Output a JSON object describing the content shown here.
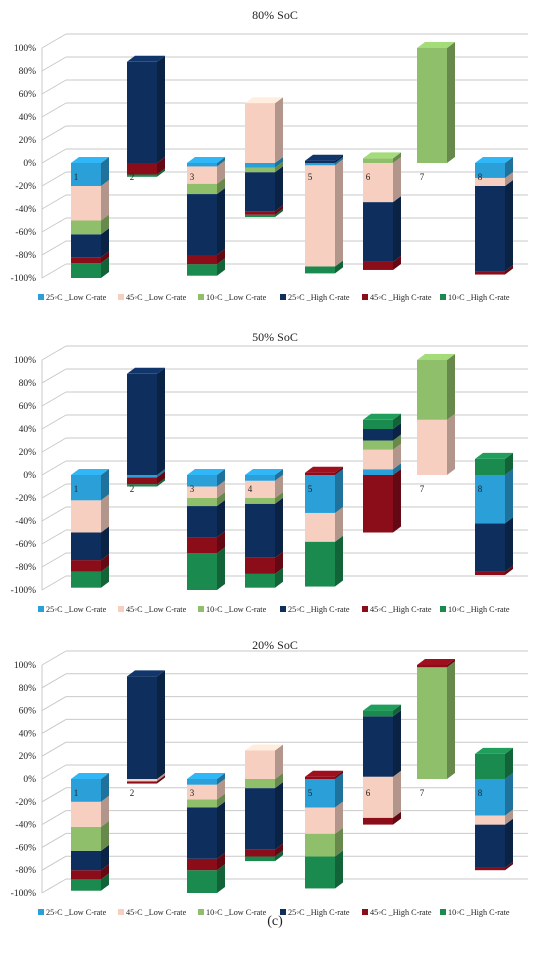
{
  "caption": "(c)",
  "colors": {
    "25C_Low": "#2a9fd8",
    "45C_Low": "#f7cfc1",
    "10C_Low": "#8fbf6a",
    "25C_High": "#0e2f5e",
    "45C_High": "#8b0d1a",
    "10C_High": "#1b8a4f"
  },
  "chart_data": [
    {
      "type": "bar",
      "stacked": true,
      "title": "80% SoC",
      "yticks": [
        "100%",
        "80%",
        "60%",
        "40%",
        "20%",
        "0%",
        "-20%",
        "-40%",
        "-60%",
        "-80%",
        "-100%"
      ],
      "ylim": [
        -100,
        100
      ],
      "categories": [
        "1",
        "2",
        "3",
        "4",
        "5",
        "6",
        "7",
        "8"
      ],
      "category_labels": [
        "1",
        "2",
        "3",
        "",
        "5",
        "6",
        "7",
        "8"
      ],
      "legend": [
        {
          "key": "25C_Low",
          "label": "25◦C _Low C-rate"
        },
        {
          "key": "45C_Low",
          "label": "45◦C _Low C-rate"
        },
        {
          "key": "10C_Low",
          "label": "10◦C _Low C-rate"
        },
        {
          "key": "25C_High",
          "label": "25◦C _High C-rate"
        },
        {
          "key": "45C_High",
          "label": "45◦C _High C-rate"
        },
        {
          "key": "10C_High",
          "label": "10◦C _High C-rate"
        }
      ],
      "stacks": [
        [
          {
            "k": "25C_Low",
            "from": 0,
            "to": -20
          },
          {
            "k": "45C_Low",
            "from": -20,
            "to": -50
          },
          {
            "k": "10C_Low",
            "from": -50,
            "to": -62
          },
          {
            "k": "25C_High",
            "from": -62,
            "to": -82
          },
          {
            "k": "45C_High",
            "from": -82,
            "to": -87
          },
          {
            "k": "10C_High",
            "from": -87,
            "to": -100
          }
        ],
        [
          {
            "k": "25C_High",
            "from": 0,
            "to": 88
          },
          {
            "k": "45C_High",
            "from": 0,
            "to": -10
          },
          {
            "k": "10C_High",
            "from": -10,
            "to": -12
          }
        ],
        [
          {
            "k": "25C_Low",
            "from": 0,
            "to": -3
          },
          {
            "k": "45C_Low",
            "from": -3,
            "to": -18
          },
          {
            "k": "10C_Low",
            "from": -18,
            "to": -27
          },
          {
            "k": "25C_High",
            "from": -27,
            "to": -80
          },
          {
            "k": "45C_High",
            "from": -80,
            "to": -88
          },
          {
            "k": "10C_High",
            "from": -88,
            "to": -98
          }
        ],
        [
          {
            "k": "45C_Low",
            "from": 0,
            "to": 52
          },
          {
            "k": "25C_Low",
            "from": 0,
            "to": -4
          },
          {
            "k": "10C_Low",
            "from": -4,
            "to": -8
          },
          {
            "k": "25C_High",
            "from": -8,
            "to": -42
          },
          {
            "k": "45C_High",
            "from": -42,
            "to": -45
          },
          {
            "k": "10C_High",
            "from": -45,
            "to": -47
          }
        ],
        [
          {
            "k": "25C_High",
            "from": 0,
            "to": 2
          },
          {
            "k": "25C_Low",
            "from": 0,
            "to": -2
          },
          {
            "k": "45C_Low",
            "from": -2,
            "to": -90
          },
          {
            "k": "10C_High",
            "from": -90,
            "to": -96
          }
        ],
        [
          {
            "k": "10C_Low",
            "from": 0,
            "to": 4
          },
          {
            "k": "45C_Low",
            "from": 0,
            "to": -34
          },
          {
            "k": "25C_High",
            "from": -34,
            "to": -86
          },
          {
            "k": "45C_High",
            "from": -86,
            "to": -93
          }
        ],
        [
          {
            "k": "10C_Low",
            "from": 0,
            "to": 100
          }
        ],
        [
          {
            "k": "25C_Low",
            "from": 0,
            "to": -13
          },
          {
            "k": "45C_Low",
            "from": -13,
            "to": -20
          },
          {
            "k": "25C_High",
            "from": -20,
            "to": -94
          },
          {
            "k": "45C_High",
            "from": -94,
            "to": -97
          }
        ]
      ]
    },
    {
      "type": "bar",
      "stacked": true,
      "title": "50% SoC",
      "yticks": [
        "100%",
        "80%",
        "60%",
        "40%",
        "20%",
        "0%",
        "-20%",
        "-40%",
        "-60%",
        "-80%",
        "-100%"
      ],
      "ylim": [
        -100,
        100
      ],
      "categories": [
        "1",
        "2",
        "3",
        "4",
        "5",
        "6",
        "7",
        "8"
      ],
      "category_labels": [
        "1",
        "2",
        "3",
        "4",
        "5",
        "",
        "7",
        "8"
      ],
      "legend": [
        {
          "key": "25C_Low",
          "label": "25◦C _Low C-rate"
        },
        {
          "key": "45C_Low",
          "label": "45◦C _Low C-rate"
        },
        {
          "key": "10C_Low",
          "label": "10◦C _Low C-rate"
        },
        {
          "key": "25C_High",
          "label": "25◦C _High C-rate"
        },
        {
          "key": "45C_High",
          "label": "45◦C _High C-rate"
        },
        {
          "key": "10C_High",
          "label": "10◦C _High C-rate"
        }
      ],
      "stacks": [
        [
          {
            "k": "25C_Low",
            "from": 0,
            "to": -22
          },
          {
            "k": "45C_Low",
            "from": -22,
            "to": -50
          },
          {
            "k": "25C_High",
            "from": -50,
            "to": -74
          },
          {
            "k": "45C_High",
            "from": -74,
            "to": -84
          },
          {
            "k": "10C_High",
            "from": -84,
            "to": -98
          }
        ],
        [
          {
            "k": "25C_High",
            "from": 0,
            "to": 88
          },
          {
            "k": "25C_Low",
            "from": 0,
            "to": -2
          },
          {
            "k": "45C_High",
            "from": -2,
            "to": -8
          },
          {
            "k": "10C_High",
            "from": -8,
            "to": -10
          }
        ],
        [
          {
            "k": "25C_Low",
            "from": 0,
            "to": -10
          },
          {
            "k": "45C_Low",
            "from": -10,
            "to": -20
          },
          {
            "k": "10C_Low",
            "from": -20,
            "to": -27
          },
          {
            "k": "25C_High",
            "from": -27,
            "to": -54
          },
          {
            "k": "45C_High",
            "from": -54,
            "to": -68
          },
          {
            "k": "10C_High",
            "from": -68,
            "to": -100
          }
        ],
        [
          {
            "k": "25C_Low",
            "from": 0,
            "to": -5
          },
          {
            "k": "45C_Low",
            "from": -5,
            "to": -20
          },
          {
            "k": "10C_Low",
            "from": -20,
            "to": -25
          },
          {
            "k": "25C_High",
            "from": -25,
            "to": -72
          },
          {
            "k": "45C_High",
            "from": -72,
            "to": -86
          },
          {
            "k": "10C_High",
            "from": -86,
            "to": -98
          }
        ],
        [
          {
            "k": "45C_High",
            "from": 0,
            "to": 2
          },
          {
            "k": "25C_Low",
            "from": 0,
            "to": -33
          },
          {
            "k": "45C_Low",
            "from": -33,
            "to": -58
          },
          {
            "k": "10C_High",
            "from": -58,
            "to": -97
          }
        ],
        [
          {
            "k": "25C_Low",
            "from": 0,
            "to": 5
          },
          {
            "k": "45C_Low",
            "from": 5,
            "to": 22
          },
          {
            "k": "10C_Low",
            "from": 22,
            "to": 30
          },
          {
            "k": "25C_High",
            "from": 30,
            "to": 40
          },
          {
            "k": "10C_High",
            "from": 40,
            "to": 48
          },
          {
            "k": "45C_High",
            "from": 0,
            "to": -50
          }
        ],
        [
          {
            "k": "45C_Low",
            "from": 0,
            "to": 48
          },
          {
            "k": "10C_Low",
            "from": 48,
            "to": 100
          }
        ],
        [
          {
            "k": "10C_High",
            "from": 0,
            "to": 14
          },
          {
            "k": "25C_Low",
            "from": 0,
            "to": -42
          },
          {
            "k": "25C_High",
            "from": -42,
            "to": -84
          },
          {
            "k": "45C_High",
            "from": -84,
            "to": -87
          }
        ]
      ]
    },
    {
      "type": "bar",
      "stacked": true,
      "title": "20% SoC",
      "yticks": [
        "100%",
        "80%",
        "60%",
        "40%",
        "20%",
        "0%",
        "-20%",
        "-40%",
        "-60%",
        "-80%",
        "-100%"
      ],
      "ylim": [
        -100,
        100
      ],
      "categories": [
        "1",
        "2",
        "3",
        "4",
        "5",
        "6",
        "7",
        "8"
      ],
      "category_labels": [
        "1",
        "2",
        "3",
        "",
        "5",
        "6",
        "7",
        "8"
      ],
      "legend": [
        {
          "key": "25C_Low",
          "label": "25◦C _Low C-rate"
        },
        {
          "key": "45C_Low",
          "label": "45◦C _Low C-rate"
        },
        {
          "key": "10C_Low",
          "label": "10◦C _Low C-rate"
        },
        {
          "key": "25C_High",
          "label": "25◦C _High C-rate"
        },
        {
          "key": "45C_High",
          "label": "45◦C _High C-rate"
        },
        {
          "key": "10C_High",
          "label": "10◦C _High C-rate"
        }
      ],
      "stacks": [
        [
          {
            "k": "25C_Low",
            "from": 0,
            "to": -20
          },
          {
            "k": "45C_Low",
            "from": -20,
            "to": -42
          },
          {
            "k": "10C_Low",
            "from": -42,
            "to": -63
          },
          {
            "k": "25C_High",
            "from": -63,
            "to": -80
          },
          {
            "k": "45C_High",
            "from": -80,
            "to": -88
          },
          {
            "k": "10C_High",
            "from": -88,
            "to": -98
          }
        ],
        [
          {
            "k": "25C_High",
            "from": 0,
            "to": 90
          },
          {
            "k": "45C_Low",
            "from": 0,
            "to": -2
          },
          {
            "k": "45C_High",
            "from": -2,
            "to": -4
          }
        ],
        [
          {
            "k": "25C_Low",
            "from": 0,
            "to": -5
          },
          {
            "k": "45C_Low",
            "from": -5,
            "to": -18
          },
          {
            "k": "10C_Low",
            "from": -18,
            "to": -25
          },
          {
            "k": "25C_High",
            "from": -25,
            "to": -70
          },
          {
            "k": "45C_High",
            "from": -70,
            "to": -80
          },
          {
            "k": "10C_High",
            "from": -80,
            "to": -100
          }
        ],
        [
          {
            "k": "45C_Low",
            "from": 0,
            "to": 25
          },
          {
            "k": "10C_Low",
            "from": 0,
            "to": -8
          },
          {
            "k": "25C_High",
            "from": -8,
            "to": -62
          },
          {
            "k": "45C_High",
            "from": -62,
            "to": -68
          },
          {
            "k": "10C_High",
            "from": -68,
            "to": -72
          }
        ],
        [
          {
            "k": "45C_High",
            "from": 0,
            "to": 2
          },
          {
            "k": "25C_Low",
            "from": 0,
            "to": -25
          },
          {
            "k": "45C_Low",
            "from": -25,
            "to": -48
          },
          {
            "k": "10C_Low",
            "from": -48,
            "to": -68
          },
          {
            "k": "10C_High",
            "from": -68,
            "to": -96
          }
        ],
        [
          {
            "k": "10C_High",
            "from": 55,
            "to": 60
          },
          {
            "k": "25C_High",
            "from": 2,
            "to": 55
          },
          {
            "k": "45C_Low",
            "from": 2,
            "to": -34
          },
          {
            "k": "45C_High",
            "from": -34,
            "to": -40
          }
        ],
        [
          {
            "k": "45C_High",
            "from": 98,
            "to": 100
          },
          {
            "k": "10C_Low",
            "from": 0,
            "to": 98
          }
        ],
        [
          {
            "k": "10C_High",
            "from": 0,
            "to": 22
          },
          {
            "k": "25C_Low",
            "from": 0,
            "to": -32
          },
          {
            "k": "45C_Low",
            "from": -32,
            "to": -40
          },
          {
            "k": "25C_High",
            "from": -40,
            "to": -78
          },
          {
            "k": "45C_High",
            "from": -78,
            "to": -80
          }
        ]
      ]
    }
  ]
}
